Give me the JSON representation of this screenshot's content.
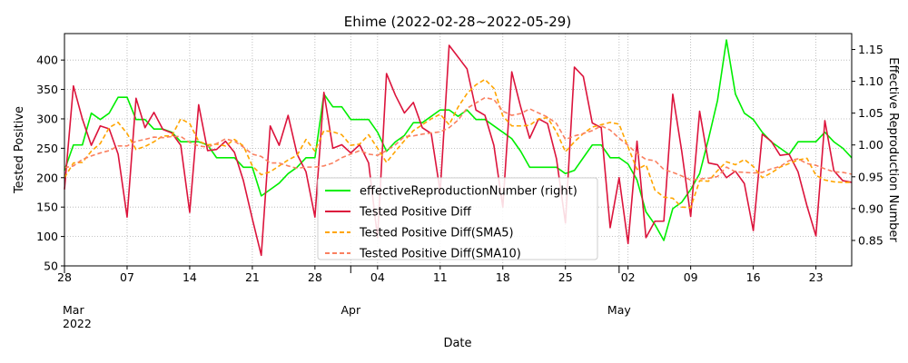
{
  "chart_data": {
    "type": "line",
    "title": "Ehime (2022-02-28~2022-05-29)",
    "xlabel": "Date",
    "ylabel": "Tested Positive",
    "ylabel_right": "Effective Reproduction Number",
    "ylim": [
      50,
      445
    ],
    "ylim_right": [
      0.81,
      1.175
    ],
    "y_ticks": [
      50,
      100,
      150,
      200,
      250,
      300,
      350,
      400
    ],
    "y_ticks_right": [
      0.85,
      0.9,
      0.95,
      1.0,
      1.05,
      1.1,
      1.15
    ],
    "y_ticks_right_labels": [
      "0.85",
      "0.90",
      "0.95",
      "1.00",
      "1.05",
      "1.10",
      "1.15"
    ],
    "x_start": "2022-02-28",
    "x_end": "2022-05-29",
    "x_ticks": [
      {
        "day": 0,
        "label": "28"
      },
      {
        "day": 7,
        "label": "07"
      },
      {
        "day": 14,
        "label": "14"
      },
      {
        "day": 21,
        "label": "21"
      },
      {
        "day": 28,
        "label": "28"
      },
      {
        "day": 35,
        "label": "04"
      },
      {
        "day": 42,
        "label": "11"
      },
      {
        "day": 49,
        "label": "18"
      },
      {
        "day": 56,
        "label": "25"
      },
      {
        "day": 63,
        "label": "02"
      },
      {
        "day": 70,
        "label": "09"
      },
      {
        "day": 77,
        "label": "16"
      },
      {
        "day": 84,
        "label": "23"
      }
    ],
    "month_labels": [
      {
        "day": 0,
        "label": "Mar",
        "year": "2022"
      },
      {
        "day": 32,
        "label": "Apr",
        "year": ""
      },
      {
        "day": 62,
        "label": "May",
        "year": ""
      }
    ],
    "grid": true,
    "legend_position": "bottom-center",
    "series": [
      {
        "name": "effectiveReproductionNumber (right)",
        "axis": "right",
        "color": "#00ee00",
        "style": "solid",
        "values": [
          0.96,
          1.0,
          1.0,
          1.05,
          1.04,
          1.05,
          1.075,
          1.075,
          1.04,
          1.04,
          1.025,
          1.025,
          1.02,
          1.005,
          1.005,
          1.005,
          1.0,
          0.98,
          0.98,
          0.98,
          0.965,
          0.965,
          0.92,
          0.93,
          0.94,
          0.955,
          0.965,
          0.98,
          0.98,
          1.08,
          1.06,
          1.06,
          1.04,
          1.04,
          1.04,
          1.02,
          0.99,
          1.005,
          1.015,
          1.035,
          1.035,
          1.045,
          1.055,
          1.055,
          1.045,
          1.055,
          1.04,
          1.04,
          1.03,
          1.02,
          1.01,
          0.99,
          0.965,
          0.965,
          0.965,
          0.965,
          0.955,
          0.96,
          0.98,
          1.0,
          1.0,
          0.98,
          0.98,
          0.97,
          0.945,
          0.895,
          0.875,
          0.85,
          0.9,
          0.91,
          0.93,
          0.955,
          1.01,
          1.07,
          1.165,
          1.08,
          1.05,
          1.04,
          1.02,
          1.005,
          0.995,
          0.985,
          1.005,
          1.005,
          1.005,
          1.02,
          1.005,
          0.995,
          0.98
        ]
      },
      {
        "name": "Tested Positive Diff",
        "axis": "left",
        "color": "#dc143c",
        "style": "solid",
        "values": [
          180,
          356,
          300,
          255,
          288,
          283,
          240,
          133,
          335,
          285,
          311,
          282,
          276,
          255,
          141,
          324,
          246,
          248,
          262,
          243,
          195,
          130,
          68,
          288,
          255,
          306,
          240,
          210,
          133,
          345,
          250,
          256,
          242,
          256,
          225,
          98,
          377,
          340,
          310,
          328,
          285,
          275,
          176,
          425,
          405,
          385,
          315,
          306,
          255,
          150,
          380,
          320,
          267,
          300,
          292,
          232,
          123,
          388,
          372,
          293,
          285,
          115,
          200,
          88,
          262,
          98,
          126,
          126,
          342,
          245,
          134,
          313,
          225,
          222,
          200,
          211,
          190,
          110,
          274,
          262,
          238,
          240,
          210,
          152,
          101,
          297,
          212,
          195,
          192
        ]
      },
      {
        "name": "Tested Positive Diff(SMA5)",
        "axis": "left",
        "color": "#ffa500",
        "style": "dashed",
        "values": [
          200,
          225,
          226,
          245,
          258,
          285,
          294,
          275,
          248,
          253,
          261,
          271,
          271,
          300,
          292,
          262,
          256,
          257,
          254,
          265,
          254,
          220,
          205,
          210,
          220,
          230,
          238,
          265,
          245,
          280,
          278,
          273,
          255,
          257,
          273,
          250,
          226,
          245,
          263,
          280,
          290,
          300,
          308,
          290,
          320,
          343,
          358,
          367,
          352,
          305,
          288,
          288,
          289,
          300,
          302,
          278,
          244,
          261,
          275,
          286,
          290,
          294,
          291,
          252,
          214,
          222,
          179,
          167,
          165,
          150,
          149,
          195,
          194,
          212,
          227,
          222,
          231,
          219,
          200,
          208,
          218,
          224,
          230,
          233,
          204,
          196,
          193,
          192,
          192
        ]
      },
      {
        "name": "Tested Positive Diff(SMA10)",
        "axis": "left",
        "color": "#fa8060",
        "style": "dashed",
        "values": [
          217,
          220,
          231,
          237,
          242,
          246,
          254,
          254,
          262,
          265,
          269,
          268,
          270,
          270,
          260,
          254,
          252,
          258,
          266,
          262,
          252,
          240,
          236,
          225,
          225,
          220,
          216,
          218,
          218,
          220,
          225,
          234,
          240,
          246,
          240,
          238,
          246,
          256,
          270,
          271,
          274,
          276,
          278,
          285,
          298,
          318,
          327,
          336,
          333,
          313,
          306,
          309,
          317,
          310,
          303,
          292,
          265,
          271,
          275,
          280,
          288,
          281,
          267,
          255,
          241,
          231,
          229,
          214,
          209,
          203,
          196,
          198,
          199,
          202,
          218,
          210,
          209,
          208,
          209,
          215,
          219,
          229,
          232,
          224,
          221,
          215,
          210,
          209,
          206
        ]
      }
    ]
  }
}
